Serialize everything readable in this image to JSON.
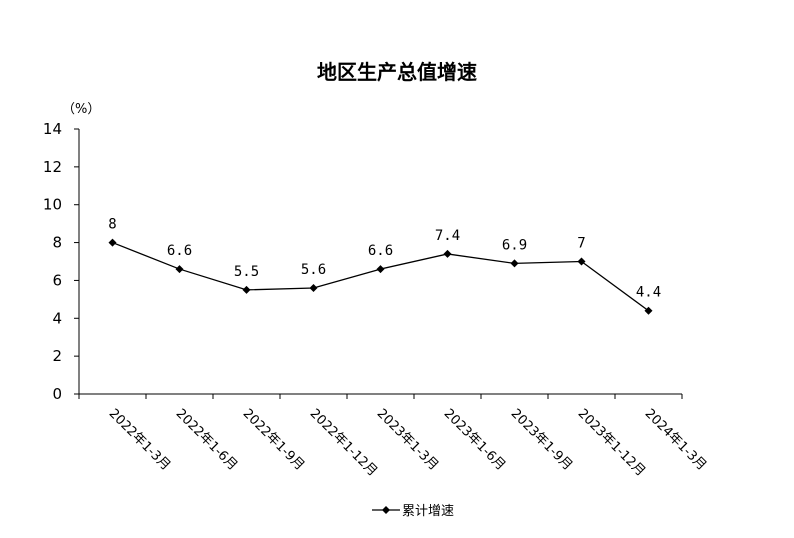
{
  "chart_data": {
    "type": "line",
    "title": "地区生产总值增速",
    "ylabel": "（%）",
    "xlabel": "",
    "ylim": [
      0,
      14
    ],
    "yticks": [
      0,
      2,
      4,
      6,
      8,
      10,
      12,
      14
    ],
    "categories": [
      "2022年1-3月",
      "2022年1-6月",
      "2022年1-9月",
      "2022年1-12月",
      "2023年1-3月",
      "2023年1-6月",
      "2023年1-9月",
      "2023年1-12月",
      "2024年1-3月"
    ],
    "series": [
      {
        "name": "累计增速",
        "values": [
          8,
          6.6,
          5.5,
          5.6,
          6.6,
          7.4,
          6.9,
          7,
          4.4
        ],
        "labels": [
          "8",
          "6.6",
          "5.5",
          "5.6",
          "6.6",
          "7.4",
          "6.9",
          "7",
          "4.4"
        ],
        "color": "#000000",
        "marker": "diamond"
      }
    ],
    "grid": false,
    "legend_position": "bottom"
  }
}
